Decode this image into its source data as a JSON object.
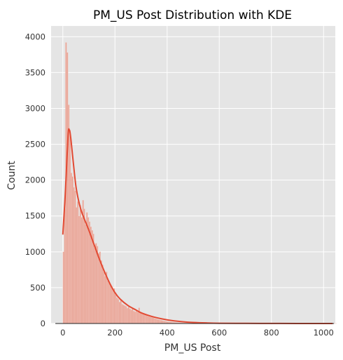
{
  "chart_data": {
    "type": "bar",
    "title": "PM_US Post Distribution with KDE",
    "xlabel": "PM_US Post",
    "ylabel": "Count",
    "xlim": [
      -45,
      1045
    ],
    "ylim": [
      0,
      4150
    ],
    "xticks": [
      0,
      200,
      400,
      600,
      800,
      1000
    ],
    "yticks": [
      0,
      500,
      1000,
      1500,
      2000,
      2500,
      3000,
      3500,
      4000
    ],
    "grid": true,
    "bin_width": 5,
    "histogram": {
      "bin_start": 0,
      "counts": [
        1000,
        1600,
        3920,
        3780,
        3050,
        2650,
        2100,
        2050,
        1900,
        1850,
        1620,
        1700,
        1500,
        1650,
        1480,
        1720,
        1600,
        1380,
        1550,
        1480,
        1420,
        1350,
        1300,
        1250,
        1060,
        1120,
        1080,
        980,
        1000,
        880,
        820,
        720,
        660,
        720,
        600,
        580,
        540,
        520,
        480,
        490,
        430,
        360,
        340,
        300,
        320,
        270,
        260,
        250,
        240,
        215,
        230,
        205,
        190,
        210,
        175,
        165,
        180,
        160,
        220,
        165,
        150,
        140,
        130,
        120,
        110,
        100,
        95,
        90,
        85,
        80,
        72,
        66,
        60,
        55,
        50,
        46,
        42,
        38,
        34,
        30,
        27,
        24,
        22,
        20,
        18,
        16,
        14,
        13,
        12,
        11,
        10,
        9,
        8,
        8,
        7,
        6,
        6,
        5,
        5,
        4,
        4,
        4,
        3,
        3,
        3,
        3,
        2,
        2,
        2,
        2,
        2,
        2,
        2,
        1,
        1,
        1,
        1,
        1,
        1,
        1,
        1,
        1,
        1,
        1,
        1,
        1,
        1,
        1,
        1,
        1,
        1,
        1,
        1,
        1,
        1,
        1,
        1,
        1,
        1,
        1,
        1,
        1,
        1,
        1,
        1,
        1,
        1,
        1,
        1,
        1,
        1,
        1,
        1,
        1,
        1,
        1,
        1,
        1,
        1,
        1,
        1,
        1,
        1,
        1,
        1,
        1,
        1,
        1,
        1,
        1,
        1,
        1,
        1,
        1,
        1,
        1,
        1,
        1,
        1,
        1,
        1,
        1,
        1,
        1,
        1,
        1,
        1,
        1,
        1,
        1,
        1,
        1,
        1,
        1,
        1,
        1,
        1,
        1,
        1,
        1,
        1,
        1,
        1,
        1,
        1,
        1,
        1,
        1,
        1,
        1
      ]
    },
    "kde": {
      "x": [
        0,
        10,
        20,
        25,
        30,
        40,
        50,
        60,
        70,
        80,
        90,
        100,
        110,
        120,
        140,
        160,
        180,
        200,
        220,
        250,
        280,
        300,
        340,
        380,
        420,
        460,
        500,
        550,
        600,
        700,
        800,
        900,
        1000,
        1035
      ],
      "y": [
        1240,
        1850,
        2620,
        2700,
        2600,
        2250,
        1920,
        1720,
        1580,
        1480,
        1390,
        1300,
        1200,
        1100,
        900,
        720,
        560,
        430,
        340,
        250,
        190,
        150,
        100,
        65,
        40,
        25,
        15,
        8,
        4,
        2,
        1,
        0,
        0,
        0
      ]
    },
    "colors": {
      "bar_fill": "#e8a395",
      "bar_stroke": "#f3cfc7",
      "kde_line": "#e24a33",
      "background": "#e5e5e5",
      "grid": "#ffffff",
      "baseline": "#222222"
    }
  }
}
